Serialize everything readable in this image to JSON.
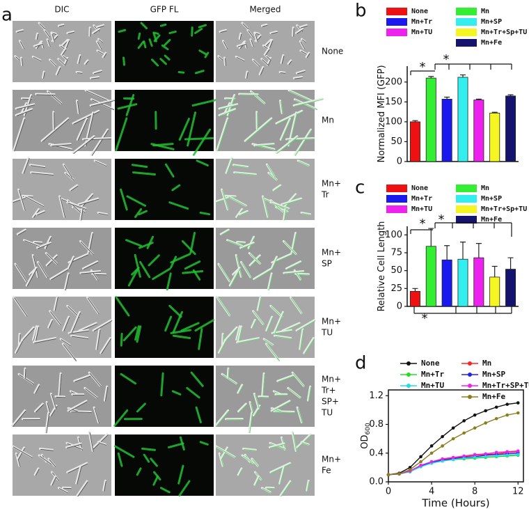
{
  "panel_labels": [
    "a",
    "b",
    "c",
    "d"
  ],
  "micrographs": {
    "columns": [
      "DIC",
      "GFP FL",
      "Merged"
    ],
    "rows": [
      [
        "None"
      ],
      [
        "Mn"
      ],
      [
        "Mn+",
        "Tr"
      ],
      [
        "Mn+",
        "SP"
      ],
      [
        "Mn+",
        "TU"
      ],
      [
        "Mn+",
        "Tr+",
        "SP+",
        "TU"
      ],
      [
        "Mn+",
        "Fe"
      ]
    ]
  },
  "chart_data": [
    {
      "type": "bar",
      "ylabel": "Normalized MFI (GFP)",
      "ylim": [
        0,
        240
      ],
      "yticks": [
        0,
        50,
        100,
        150,
        200
      ],
      "annotations": [
        "*",
        "*"
      ],
      "series": [
        {
          "name": "None",
          "color": "#ee1111",
          "values": [
            100
          ],
          "errors": [
            3
          ]
        },
        {
          "name": "Mn",
          "color": "#33ee33",
          "values": [
            210
          ],
          "errors": [
            4
          ]
        },
        {
          "name": "Mn+Tr",
          "color": "#1a1aee",
          "values": [
            157
          ],
          "errors": [
            5
          ]
        },
        {
          "name": "Mn+SP",
          "color": "#33eeee",
          "values": [
            212
          ],
          "errors": [
            6
          ]
        },
        {
          "name": "Mn+TU",
          "color": "#ee22ee",
          "values": [
            155
          ],
          "errors": [
            2
          ]
        },
        {
          "name": "Mn+Tr+Sp+TU",
          "color": "#f5f522",
          "values": [
            122
          ],
          "errors": [
            2
          ]
        },
        {
          "name": "Mn+Fe",
          "color": "#14146e",
          "values": [
            165
          ],
          "errors": [
            3
          ]
        }
      ]
    },
    {
      "type": "bar",
      "ylabel": "Relative Cell Length",
      "ylim": [
        0,
        112
      ],
      "yticks": [
        0,
        25,
        50,
        75,
        100
      ],
      "annotations": [
        "*",
        "*",
        "*"
      ],
      "series": [
        {
          "name": "None",
          "color": "#ee1111",
          "values": [
            21
          ],
          "errors": [
            4
          ]
        },
        {
          "name": "Mn",
          "color": "#33ee33",
          "values": [
            84
          ],
          "errors": [
            25
          ]
        },
        {
          "name": "Mn+Tr",
          "color": "#1a1aee",
          "values": [
            65
          ],
          "errors": [
            20
          ]
        },
        {
          "name": "Mn+SP",
          "color": "#33eeee",
          "values": [
            66
          ],
          "errors": [
            24
          ]
        },
        {
          "name": "Mn+TU",
          "color": "#ee22ee",
          "values": [
            68
          ],
          "errors": [
            20
          ]
        },
        {
          "name": "Mn+Tr+Sp+TU",
          "color": "#f5f522",
          "values": [
            41
          ],
          "errors": [
            15
          ]
        },
        {
          "name": "Mn+Fe",
          "color": "#14146e",
          "values": [
            52
          ],
          "errors": [
            16
          ]
        }
      ]
    },
    {
      "type": "line",
      "xlabel": "Time (Hours)",
      "ylabel": "OD",
      "ylabel_sub": "600",
      "xlim": [
        0,
        12.5
      ],
      "xticks": [
        0,
        4,
        8,
        12
      ],
      "ylim": [
        0,
        1.28
      ],
      "yticks": [
        {
          "value": 0,
          "label": "0.0"
        },
        0.4,
        0.8,
        1.2
      ],
      "x": [
        0,
        1,
        2,
        3,
        4,
        5,
        6,
        7,
        8,
        9,
        10,
        11,
        12
      ],
      "series": [
        {
          "name": "None",
          "color": "#111111",
          "values": [
            0.1,
            0.12,
            0.2,
            0.35,
            0.5,
            0.63,
            0.75,
            0.85,
            0.93,
            0.99,
            1.04,
            1.08,
            1.1
          ]
        },
        {
          "name": "Mn",
          "color": "#ff2222",
          "values": [
            0.1,
            0.11,
            0.15,
            0.23,
            0.28,
            0.31,
            0.33,
            0.35,
            0.37,
            0.38,
            0.39,
            0.41,
            0.42
          ]
        },
        {
          "name": "Mn+Tr",
          "color": "#22dd22",
          "values": [
            0.1,
            0.11,
            0.14,
            0.22,
            0.26,
            0.29,
            0.31,
            0.32,
            0.33,
            0.34,
            0.35,
            0.36,
            0.37
          ]
        },
        {
          "name": "Mn+SP",
          "color": "#2222ee",
          "values": [
            0.1,
            0.11,
            0.15,
            0.22,
            0.27,
            0.3,
            0.32,
            0.34,
            0.35,
            0.37,
            0.38,
            0.39,
            0.4
          ]
        },
        {
          "name": "Mn+TU",
          "color": "#22dddd",
          "values": [
            0.1,
            0.11,
            0.14,
            0.21,
            0.26,
            0.29,
            0.31,
            0.33,
            0.34,
            0.35,
            0.36,
            0.37,
            0.38
          ]
        },
        {
          "name": "Mn+Tr+SP+TU",
          "color": "#ee22ee",
          "values": [
            0.1,
            0.11,
            0.15,
            0.23,
            0.28,
            0.32,
            0.34,
            0.36,
            0.38,
            0.39,
            0.41,
            0.42,
            0.43
          ]
        },
        {
          "name": "Mn+Fe",
          "color": "#8b7d1b",
          "values": [
            0.1,
            0.11,
            0.17,
            0.28,
            0.4,
            0.5,
            0.6,
            0.68,
            0.75,
            0.82,
            0.88,
            0.93,
            0.96
          ]
        }
      ]
    }
  ]
}
